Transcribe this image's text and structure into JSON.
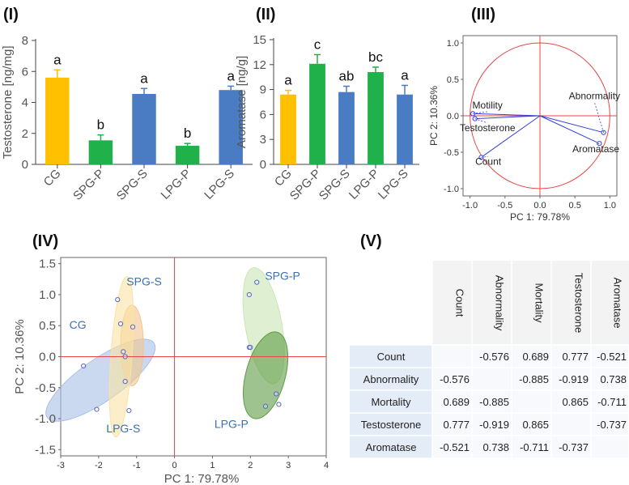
{
  "panels": {
    "i": "(I)",
    "ii": "(II)",
    "iii": "(III)",
    "iv": "(IV)",
    "v": "(V)"
  },
  "colors": {
    "yellow": "#ffc000",
    "green": "#21b14b",
    "blue": "#4a7cc4",
    "red": "#e84545",
    "loading": "#3340d8",
    "scores": "#5566cc"
  },
  "chart_data": [
    {
      "type": "bar",
      "id": "I",
      "categories": [
        "CG",
        "SPG-P",
        "SPG-S",
        "LPG-P",
        "LPG-S"
      ],
      "values": [
        5.6,
        1.55,
        4.55,
        1.2,
        4.8
      ],
      "errors": [
        0.5,
        0.35,
        0.35,
        0.15,
        0.25
      ],
      "colors": [
        "#ffc000",
        "#21b14b",
        "#4a7cc4",
        "#21b14b",
        "#4a7cc4"
      ],
      "significance": [
        "a",
        "b",
        "a",
        "b",
        "a"
      ],
      "ylabel": "Testosterone [ng/mg]",
      "ylim": [
        0,
        8
      ],
      "yticks": [
        0,
        2,
        4,
        6,
        8
      ]
    },
    {
      "type": "bar",
      "id": "II",
      "categories": [
        "CG",
        "SPG-P",
        "SPG-S",
        "LPG-P",
        "LPG-S"
      ],
      "values": [
        8.4,
        12.1,
        8.7,
        11.1,
        8.4
      ],
      "errors": [
        0.5,
        1.1,
        0.7,
        0.6,
        1.1
      ],
      "colors": [
        "#ffc000",
        "#21b14b",
        "#4a7cc4",
        "#21b14b",
        "#4a7cc4"
      ],
      "significance": [
        "a",
        "c",
        "ab",
        "bc",
        "a"
      ],
      "ylabel": "Aromatase  [ng/g]",
      "ylim": [
        0,
        15
      ],
      "yticks": [
        0,
        3,
        6,
        9,
        12,
        15
      ]
    },
    {
      "type": "scatter",
      "id": "III",
      "xlabel": "PC 1: 79.78%",
      "ylabel": "PC 2: 10.36%",
      "xlim": [
        -1.1,
        1.1
      ],
      "ylim": [
        -1.1,
        1.1
      ],
      "xticks": [
        -1.0,
        -0.5,
        0.0,
        0.5,
        1.0
      ],
      "yticks": [
        -1.0,
        -0.5,
        0.0,
        0.5,
        1.0
      ],
      "xtick_labels": [
        "-1.0",
        "-0.5",
        "0.0",
        "0.5",
        "1.0"
      ],
      "ytick_labels": [
        "-1.0",
        "-0.5",
        "0.0",
        "0.5",
        "1.0"
      ],
      "loadings": [
        {
          "name": "Motility",
          "x": -0.96,
          "y": 0.03,
          "label_x": -0.75,
          "label_y": 0.1
        },
        {
          "name": "Testosterone",
          "x": -0.93,
          "y": -0.04,
          "label_x": -0.75,
          "label_y": -0.21
        },
        {
          "name": "Count",
          "x": -0.84,
          "y": -0.57,
          "label_x": -0.74,
          "label_y": -0.67
        },
        {
          "name": "Abnormality",
          "x": 0.91,
          "y": -0.23,
          "label_x": 0.78,
          "label_y": 0.23
        },
        {
          "name": "Aromatase",
          "x": 0.85,
          "y": -0.38,
          "label_x": 0.8,
          "label_y": -0.5
        }
      ]
    },
    {
      "type": "scatter",
      "id": "IV",
      "xlabel": "PC 1: 79.78%",
      "ylabel": "PC 2: 10.36%",
      "xlim": [
        -3,
        4
      ],
      "ylim": [
        -1.6,
        1.6
      ],
      "xticks": [
        -3,
        -2,
        -1,
        0,
        1,
        2,
        3,
        4
      ],
      "yticks": [
        -1.5,
        -1.0,
        -0.5,
        0.0,
        0.5,
        1.0,
        1.5
      ],
      "ytick_labels": [
        "-1.5",
        "-1.0",
        "-0.5",
        "0.0",
        "0.5",
        "1.0",
        "1.5"
      ],
      "groups": [
        {
          "name": "CG",
          "color": "#a9c0e6",
          "label_x": -2.55,
          "label_y": 0.45,
          "ellipse": {
            "cx": -1.95,
            "cy": -0.38,
            "rx": 0.55,
            "ry": 1.05,
            "angle": 55
          },
          "points": [
            [
              -2.4,
              -0.15
            ],
            [
              -2.05,
              -0.85
            ]
          ]
        },
        {
          "name": "SPG-S",
          "color": "#f2c48d",
          "label_x": -0.8,
          "label_y": 1.15,
          "ellipse": {
            "cx": -1.12,
            "cy": 0.18,
            "rx": 0.3,
            "ry": 0.65,
            "angle": 0
          },
          "points": [
            [
              -1.1,
              0.48
            ],
            [
              -1.35,
              0.08
            ]
          ]
        },
        {
          "name": "LPG-S",
          "color": "#fae3a3",
          "label_x": -1.35,
          "label_y": -1.22,
          "ellipse": {
            "cx": -1.4,
            "cy": 0.0,
            "rx": 0.28,
            "ry": 1.3,
            "angle": 4
          },
          "points": [
            [
              -1.5,
              0.92
            ],
            [
              -1.42,
              0.53
            ],
            [
              -1.3,
              0.0
            ],
            [
              -1.3,
              -0.4
            ],
            [
              -1.2,
              -0.87
            ]
          ]
        },
        {
          "name": "SPG-P",
          "color": "#c9e6b4",
          "label_x": 2.85,
          "label_y": 1.24,
          "ellipse": {
            "cx": 2.35,
            "cy": 0.5,
            "rx": 0.48,
            "ry": 0.95,
            "angle": -10
          },
          "points": [
            [
              1.97,
              1.0
            ],
            [
              2.17,
              1.2
            ],
            [
              1.97,
              0.15
            ]
          ]
        },
        {
          "name": "LPG-P",
          "color": "#5d9b44",
          "label_x": 1.5,
          "label_y": -1.15,
          "ellipse": {
            "cx": 2.4,
            "cy": -0.3,
            "rx": 0.52,
            "ry": 0.72,
            "angle": 15
          },
          "points": [
            [
              2.4,
              -0.8
            ],
            [
              2.68,
              -0.6
            ],
            [
              2.75,
              -0.77
            ],
            [
              2.0,
              0.15
            ]
          ]
        }
      ]
    },
    {
      "type": "table",
      "id": "V",
      "columns": [
        "Count",
        "Abnormality",
        "Mortality",
        "Testosterone",
        "Aromatase"
      ],
      "rows": [
        "Count",
        "Abnormality",
        "Mortality",
        "Testosterone",
        "Aromatase"
      ],
      "cells": [
        [
          "",
          "-0.576",
          "0.689",
          "0.777",
          "-0.521"
        ],
        [
          "-0.576",
          "",
          "-0.885",
          "-0.919",
          "0.738"
        ],
        [
          "0.689",
          "-0.885",
          "",
          "0.865",
          "-0.711"
        ],
        [
          "0.777",
          "-0.919",
          "0.865",
          "",
          "-0.737"
        ],
        [
          "-0.521",
          "0.738",
          "-0.711",
          "-0.737",
          ""
        ]
      ]
    }
  ]
}
